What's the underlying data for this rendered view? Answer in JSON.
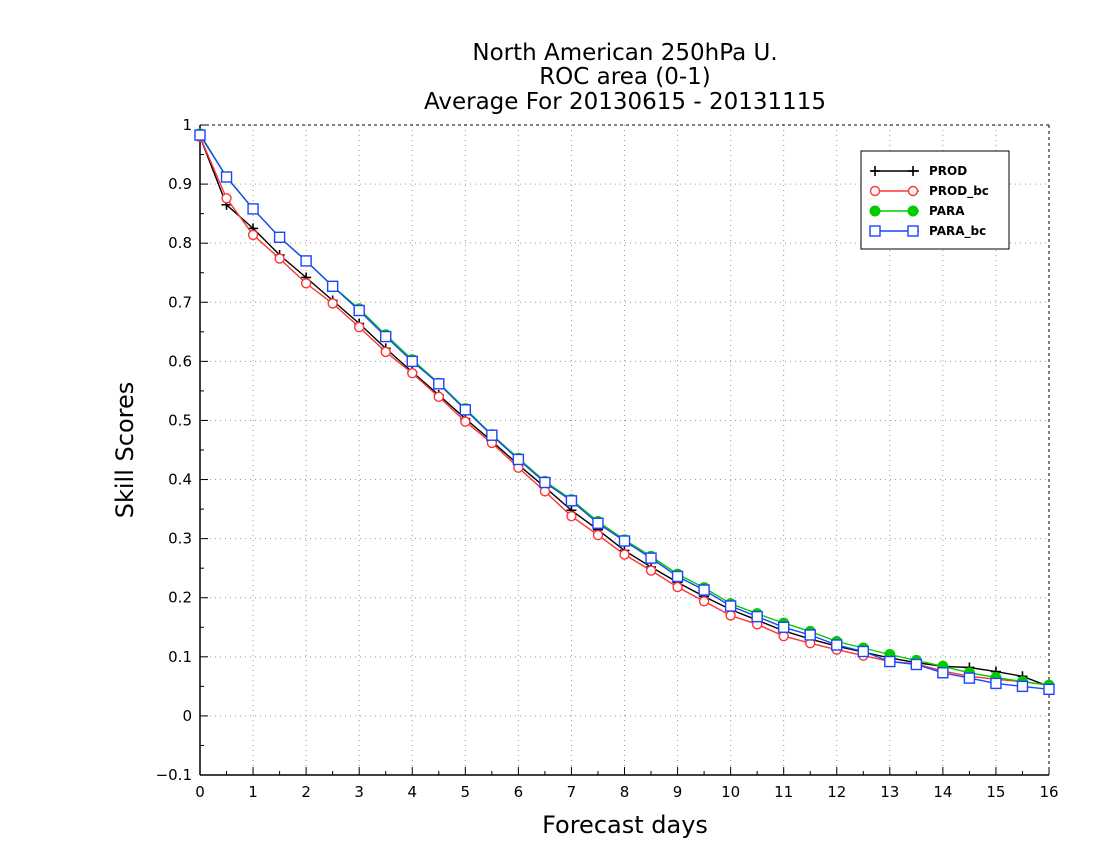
{
  "chart_data": {
    "type": "line",
    "title": [
      "North American 250hPa U.",
      "ROC area (0-1)",
      "Average For 20130615 - 20131115"
    ],
    "xlabel": "Forecast days",
    "ylabel": "Skill Scores",
    "xlim": [
      0,
      16
    ],
    "ylim": [
      -0.1,
      1
    ],
    "xticks": [
      "0",
      "1",
      "2",
      "3",
      "4",
      "5",
      "6",
      "7",
      "8",
      "9",
      "10",
      "11",
      "12",
      "13",
      "14",
      "15",
      "16"
    ],
    "yticks": [
      "−0.1",
      "0",
      "0.1",
      "0.2",
      "0.3",
      "0.4",
      "0.5",
      "0.6",
      "0.7",
      "0.8",
      "0.9",
      "1"
    ],
    "grid": true,
    "legend_position": "top-right",
    "x": [
      0,
      0.5,
      1,
      1.5,
      2,
      2.5,
      3,
      3.5,
      4,
      4.5,
      5,
      5.5,
      6,
      6.5,
      7,
      7.5,
      8,
      8.5,
      9,
      9.5,
      10,
      10.5,
      11,
      11.5,
      12,
      12.5,
      13,
      13.5,
      14,
      14.5,
      15,
      15.5,
      16
    ],
    "series": [
      {
        "name": "PROD",
        "color": "#000000",
        "marker": "plus",
        "values": [
          0.98,
          0.865,
          0.825,
          0.78,
          0.742,
          0.703,
          0.664,
          0.622,
          0.582,
          0.543,
          0.503,
          0.465,
          0.425,
          0.387,
          0.348,
          0.315,
          0.28,
          0.252,
          0.226,
          0.202,
          0.18,
          0.162,
          0.144,
          0.13,
          0.118,
          0.108,
          0.098,
          0.09,
          0.084,
          0.082,
          0.075,
          0.067,
          0.05
        ]
      },
      {
        "name": "PROD_bc",
        "color": "#ff3333",
        "marker": "circle",
        "values": [
          0.98,
          0.876,
          0.814,
          0.774,
          0.732,
          0.698,
          0.658,
          0.616,
          0.58,
          0.54,
          0.498,
          0.462,
          0.42,
          0.38,
          0.338,
          0.306,
          0.273,
          0.246,
          0.218,
          0.194,
          0.17,
          0.155,
          0.135,
          0.123,
          0.112,
          0.102,
          0.092,
          0.088,
          0.076,
          0.067,
          0.062,
          0.058,
          0.052
        ]
      },
      {
        "name": "PARA",
        "color": "#00cc00",
        "marker": "filled-circle",
        "values": [
          0.985,
          0.912,
          0.858,
          0.81,
          0.77,
          0.727,
          0.689,
          0.645,
          0.603,
          0.563,
          0.52,
          0.476,
          0.436,
          0.397,
          0.366,
          0.329,
          0.298,
          0.27,
          0.24,
          0.217,
          0.19,
          0.173,
          0.157,
          0.143,
          0.126,
          0.115,
          0.104,
          0.094,
          0.084,
          0.073,
          0.065,
          0.058,
          0.052
        ]
      },
      {
        "name": "PARA_bc",
        "color": "#1a44ff",
        "marker": "square",
        "values": [
          0.983,
          0.912,
          0.858,
          0.81,
          0.77,
          0.727,
          0.686,
          0.642,
          0.6,
          0.562,
          0.518,
          0.475,
          0.434,
          0.395,
          0.364,
          0.326,
          0.296,
          0.267,
          0.236,
          0.213,
          0.186,
          0.168,
          0.15,
          0.137,
          0.12,
          0.109,
          0.092,
          0.087,
          0.073,
          0.064,
          0.055,
          0.05,
          0.045
        ]
      }
    ]
  }
}
